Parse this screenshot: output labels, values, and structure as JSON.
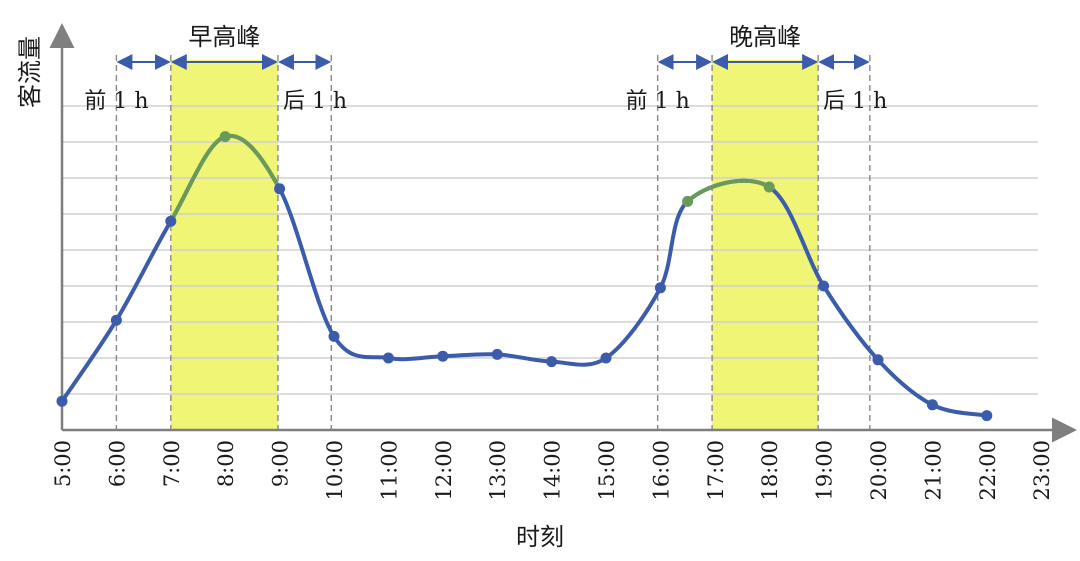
{
  "chart_data": {
    "type": "line",
    "xlabel": "时刻",
    "ylabel": "客流量",
    "x": [
      "5:00",
      "6:00",
      "7:00",
      "8:00",
      "9:00",
      "10:00",
      "11:00",
      "12:00",
      "13:00",
      "14:00",
      "15:00",
      "16:00",
      "17:00",
      "18:00",
      "19:00",
      "20:00",
      "21:00",
      "22:00",
      "23:00"
    ],
    "points": [
      {
        "t": 5.0,
        "v": 0.8
      },
      {
        "t": 6.0,
        "v": 3.05
      },
      {
        "t": 7.0,
        "v": 5.8
      },
      {
        "t": 8.0,
        "v": 8.15
      },
      {
        "t": 9.0,
        "v": 6.7
      },
      {
        "t": 10.0,
        "v": 2.6
      },
      {
        "t": 11.0,
        "v": 2.0
      },
      {
        "t": 12.0,
        "v": 2.05
      },
      {
        "t": 13.0,
        "v": 2.1
      },
      {
        "t": 14.0,
        "v": 1.9
      },
      {
        "t": 15.0,
        "v": 2.0
      },
      {
        "t": 16.0,
        "v": 3.95
      },
      {
        "t": 16.5,
        "v": 6.35
      },
      {
        "t": 18.0,
        "v": 6.75
      },
      {
        "t": 19.0,
        "v": 4.0
      },
      {
        "t": 20.0,
        "v": 1.95
      },
      {
        "t": 21.0,
        "v": 0.7
      },
      {
        "t": 22.0,
        "v": 0.4
      }
    ],
    "xlim": [
      5,
      23
    ],
    "ylim": [
      0,
      10
    ],
    "grid": true,
    "peaks": [
      {
        "label": "早高峰",
        "start": 7.0,
        "end": 9.0,
        "before_label": "前 1 h",
        "after_label": "后 1 h",
        "before_start": 6.0,
        "after_end": 10.0
      },
      {
        "label": "晚高峰",
        "start": 17.0,
        "end": 19.0,
        "before_label": "前 1 h",
        "after_label": "后 1 h",
        "before_start": 16.0,
        "after_end": 20.0
      }
    ],
    "colors": {
      "line": "#3b5bab",
      "peak_line": "#6a9a5a",
      "highlight": "#f0f576",
      "arrow": "#3b5bab",
      "grid": "#d0d0d0",
      "axis": "#7f7f7f",
      "dashed": "#888888"
    }
  }
}
